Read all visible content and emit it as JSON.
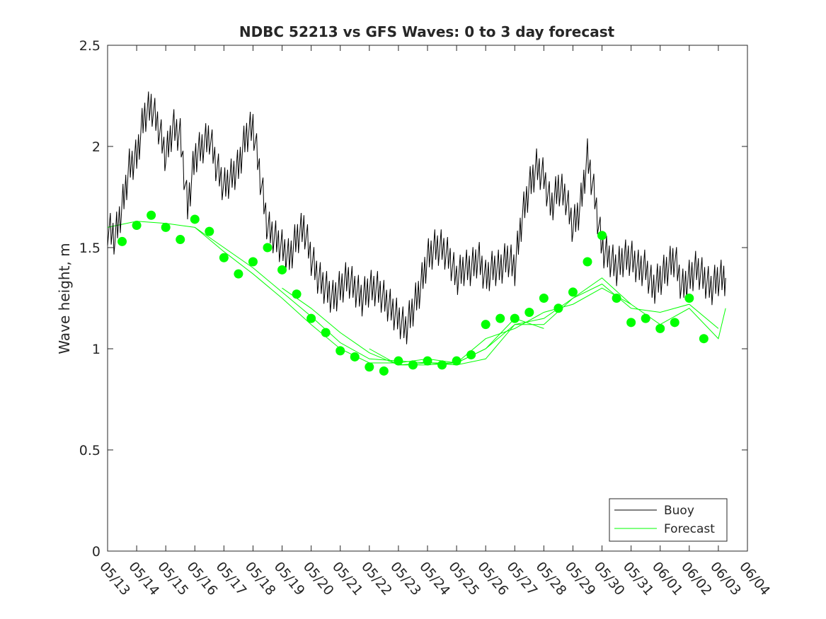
{
  "chart_data": {
    "type": "line",
    "title": "NDBC 52213 vs GFS Waves: 0 to 3 day forecast",
    "xlabel": "",
    "ylabel": "Wave height, m",
    "xlim": [
      "05/13",
      "06/04"
    ],
    "ylim": [
      0,
      2.5
    ],
    "yticks": [
      "0",
      "0.5",
      "1",
      "1.5",
      "2",
      "2.5"
    ],
    "xticks": [
      "05/13",
      "05/14",
      "05/15",
      "05/16",
      "05/17",
      "05/18",
      "05/19",
      "05/20",
      "05/21",
      "05/22",
      "05/23",
      "05/24",
      "05/25",
      "05/26",
      "05/27",
      "05/28",
      "05/29",
      "05/30",
      "05/31",
      "06/01",
      "06/02",
      "06/03",
      "06/04"
    ],
    "grid": false,
    "legend": {
      "position": "bottom-right",
      "entries": [
        "Buoy",
        "Forecast"
      ]
    },
    "colors": {
      "buoy": "#000000",
      "forecast": "#00ff00"
    },
    "series": [
      {
        "name": "Buoy",
        "x_day": [
          0,
          0.25,
          0.5,
          0.75,
          1,
          1.25,
          1.5,
          1.75,
          2,
          2.25,
          2.5,
          2.75,
          3,
          3.25,
          3.5,
          3.75,
          4,
          4.25,
          4.5,
          4.75,
          5,
          5.25,
          5.5,
          5.75,
          6,
          6.25,
          6.5,
          6.75,
          7,
          7.25,
          7.5,
          7.75,
          8,
          8.25,
          8.5,
          8.75,
          9,
          9.25,
          9.5,
          9.75,
          10,
          10.25,
          10.5,
          10.75,
          11,
          11.25,
          11.5,
          11.75,
          12,
          12.25,
          12.5,
          12.75,
          13,
          13.25,
          13.5,
          13.75,
          14,
          14.25,
          14.5,
          14.75,
          15,
          15.25,
          15.5,
          15.75,
          16,
          16.25,
          16.5,
          16.75,
          17,
          17.25,
          17.5,
          17.75,
          18,
          18.25,
          18.5,
          18.75,
          19,
          19.25,
          19.5,
          19.75,
          20,
          20.25,
          20.5,
          20.75,
          21,
          21.25
        ],
        "values": [
          1.6,
          1.55,
          1.7,
          1.9,
          1.95,
          2.15,
          2.2,
          2.1,
          1.95,
          2.1,
          2.05,
          1.7,
          1.95,
          2.0,
          2.05,
          1.9,
          1.8,
          1.85,
          1.9,
          2.05,
          2.1,
          1.85,
          1.6,
          1.55,
          1.5,
          1.45,
          1.55,
          1.6,
          1.45,
          1.35,
          1.3,
          1.25,
          1.3,
          1.35,
          1.3,
          1.25,
          1.3,
          1.3,
          1.25,
          1.2,
          1.15,
          1.1,
          1.2,
          1.3,
          1.45,
          1.5,
          1.5,
          1.45,
          1.35,
          1.4,
          1.4,
          1.45,
          1.35,
          1.4,
          1.4,
          1.45,
          1.4,
          1.65,
          1.8,
          1.9,
          1.85,
          1.7,
          1.8,
          1.75,
          1.6,
          1.7,
          1.95,
          1.75,
          1.5,
          1.45,
          1.4,
          1.45,
          1.45,
          1.4,
          1.4,
          1.3,
          1.35,
          1.4,
          1.45,
          1.3,
          1.35,
          1.4,
          1.35,
          1.3,
          1.35,
          1.35
        ]
      },
      {
        "name": "Forecast",
        "dots_x_day": [
          0.5,
          1,
          1.5,
          2,
          2.5,
          3,
          3.5,
          4,
          4.5,
          5,
          5.5,
          6,
          6.5,
          7,
          7.5,
          8,
          8.5,
          9,
          9.5,
          10,
          10.5,
          11,
          11.5,
          12,
          12.5,
          13,
          13.5,
          14,
          14.5,
          15,
          15.5,
          16,
          16.5,
          17,
          17.5,
          18,
          18.5,
          19,
          19.5,
          20,
          20.5
        ],
        "dots_values": [
          1.53,
          1.61,
          1.66,
          1.6,
          1.54,
          1.64,
          1.58,
          1.45,
          1.37,
          1.43,
          1.5,
          1.39,
          1.27,
          1.15,
          1.08,
          0.99,
          0.96,
          0.91,
          0.89,
          0.94,
          0.92,
          0.94,
          0.92,
          0.94,
          0.97,
          1.12,
          1.15,
          1.15,
          1.18,
          1.25,
          1.2,
          1.28,
          1.43,
          1.56,
          1.25,
          1.13,
          1.15,
          1.1,
          1.13,
          1.25,
          1.05
        ],
        "runs": [
          {
            "x_day": [
              0,
              1,
              2,
              3,
              4,
              5,
              6,
              7,
              8,
              9,
              10,
              11,
              12,
              13,
              14,
              15
            ],
            "values": [
              1.6,
              1.63,
              1.62,
              1.6,
              1.48,
              1.37,
              1.25,
              1.12,
              1.0,
              0.93,
              0.93,
              0.95,
              0.93,
              1.0,
              1.15,
              1.1
            ]
          },
          {
            "x_day": [
              3,
              4,
              5,
              6,
              7,
              8,
              9,
              10,
              11,
              12,
              13,
              14,
              15,
              16,
              17,
              18
            ],
            "values": [
              1.6,
              1.5,
              1.4,
              1.28,
              1.16,
              1.03,
              0.95,
              0.94,
              0.93,
              0.93,
              1.05,
              1.1,
              1.18,
              1.22,
              1.3,
              1.22
            ]
          },
          {
            "x_day": [
              6,
              7,
              8,
              9,
              10,
              11,
              12,
              13,
              14,
              15,
              16,
              17,
              18,
              19,
              20,
              21
            ],
            "values": [
              1.3,
              1.2,
              1.08,
              0.98,
              0.92,
              0.93,
              0.92,
              0.95,
              1.12,
              1.15,
              1.25,
              1.32,
              1.2,
              1.18,
              1.22,
              1.1
            ]
          },
          {
            "x_day": [
              9,
              10,
              11,
              12,
              13,
              14,
              15,
              16,
              17,
              18,
              19,
              20,
              21,
              21.25
            ],
            "values": [
              1.0,
              0.92,
              0.92,
              0.93,
              1.0,
              1.12,
              1.12,
              1.25,
              1.35,
              1.22,
              1.12,
              1.2,
              1.05,
              1.2
            ]
          }
        ]
      }
    ]
  }
}
